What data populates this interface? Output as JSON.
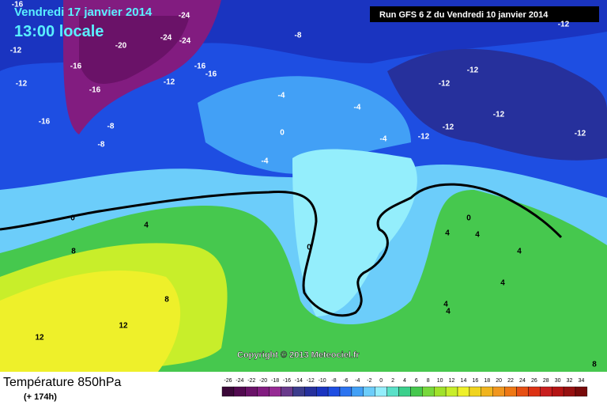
{
  "header": {
    "date": "Vendredi 17 janvier 2014",
    "time": "13:00 locale",
    "run": "Run GFS 6 Z du Vendredi 10 janvier 2014"
  },
  "copyright": "Copyright © 2013 Meteociel.fr",
  "footer": {
    "title": "Température 850hPa",
    "lead": "(+ 174h)"
  },
  "map": {
    "labels": [
      -16,
      -24,
      -12,
      -20,
      -24,
      -24,
      -8,
      -12,
      -16,
      -16,
      -16,
      -12,
      -12,
      -16,
      -12,
      -12,
      -4,
      -4,
      -12,
      -16,
      -8,
      -12,
      0,
      -4,
      -12,
      -12,
      -8,
      -4,
      0,
      4,
      0,
      4,
      4,
      8,
      0,
      4,
      4,
      8,
      4,
      4,
      12,
      12,
      8
    ]
  },
  "colorbar": {
    "ticks": [
      -26,
      -24,
      -22,
      -20,
      -18,
      -16,
      -14,
      -12,
      -10,
      -8,
      -6,
      -4,
      -2,
      0,
      2,
      4,
      6,
      8,
      10,
      12,
      14,
      16,
      18,
      20,
      22,
      24,
      26,
      28,
      30,
      32,
      34
    ],
    "colors": [
      "#3a0838",
      "#520a50",
      "#6a1268",
      "#821c80",
      "#962a94",
      "#6a3a8c",
      "#3c3c8c",
      "#26309c",
      "#1a34c0",
      "#1e4ee2",
      "#2c74f0",
      "#42a0f6",
      "#6ccdfa",
      "#94eefc",
      "#5ae0c8",
      "#3cd08c",
      "#46c84e",
      "#78d83c",
      "#a0e22a",
      "#c8ee2a",
      "#eef02a",
      "#f0d41e",
      "#f0b41e",
      "#f0961e",
      "#ee7814",
      "#e65014",
      "#dc3214",
      "#c81e1e",
      "#b41414",
      "#961010",
      "#780a0a"
    ]
  }
}
